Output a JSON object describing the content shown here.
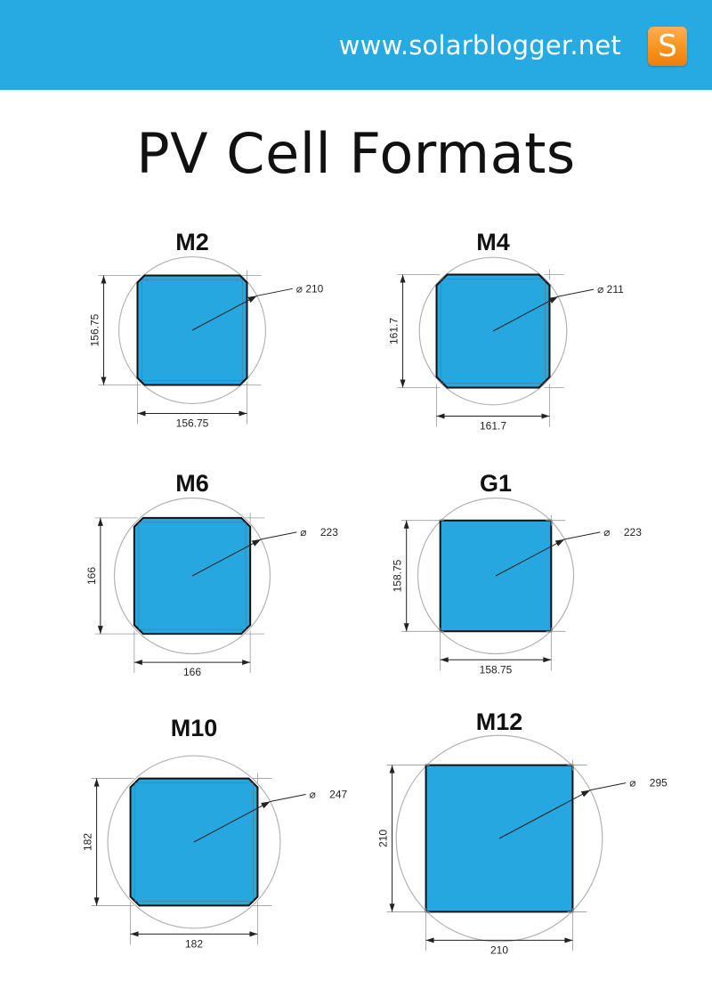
{
  "header": {
    "url": "www.solarblogger.net",
    "logo_letter": "S",
    "logo_icon": "solarblogger-logo-icon",
    "background_color": "#27a9e1",
    "logo_color": "#f7941d"
  },
  "title": "PV Cell Formats",
  "colors": {
    "cell_fill": "#27a7e0",
    "cell_stroke": "#111111",
    "circle_stroke": "#b3b3b3",
    "dimension_line": "#222222"
  },
  "diameter_symbol": "⌀",
  "cells": [
    {
      "name": "M2",
      "side": 156.75,
      "diameter": 210,
      "side_label": "156.75",
      "diameter_label": "210"
    },
    {
      "name": "M4",
      "side": 161.7,
      "diameter": 211,
      "side_label": "161.7",
      "diameter_label": "211"
    },
    {
      "name": "M6",
      "side": 166,
      "diameter": 223,
      "side_label": "166",
      "diameter_label": "223"
    },
    {
      "name": "G1",
      "side": 158.75,
      "diameter": 223,
      "side_label": "158.75",
      "diameter_label": "223"
    },
    {
      "name": "M10",
      "side": 182,
      "diameter": 247,
      "side_label": "182",
      "diameter_label": "247"
    },
    {
      "name": "M12",
      "side": 210,
      "diameter": 295,
      "side_label": "210",
      "diameter_label": "295"
    }
  ]
}
